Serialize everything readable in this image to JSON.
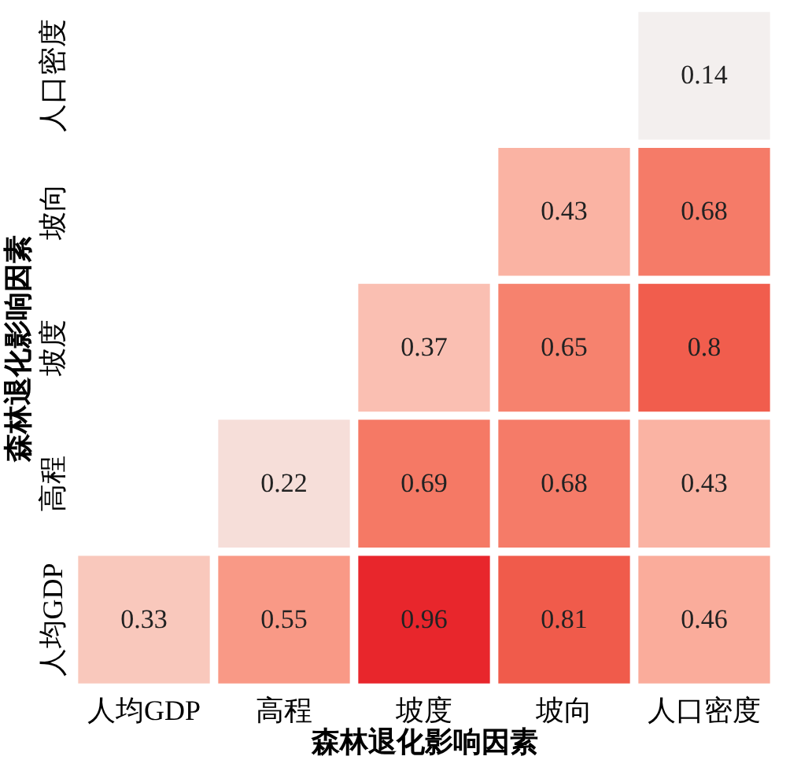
{
  "chart_data": {
    "type": "heatmap",
    "xlabel": "森林退化影响因素",
    "ylabel": "森林退化影响因素",
    "categories": [
      "人均GDP",
      "高程",
      "坡度",
      "坡向",
      "人口密度"
    ],
    "y_categories": [
      "人口密度",
      "坡向",
      "坡度",
      "高程",
      "人均GDP"
    ],
    "cells": [
      [
        null,
        null,
        null,
        null,
        0.14
      ],
      [
        null,
        null,
        null,
        0.43,
        0.68
      ],
      [
        null,
        null,
        0.37,
        0.65,
        0.8
      ],
      [
        null,
        0.22,
        0.69,
        0.68,
        0.43
      ],
      [
        0.33,
        0.55,
        0.96,
        0.81,
        0.46
      ]
    ],
    "colors": [
      "#f3efee",
      "#e8262c"
    ],
    "data_labels": true
  }
}
